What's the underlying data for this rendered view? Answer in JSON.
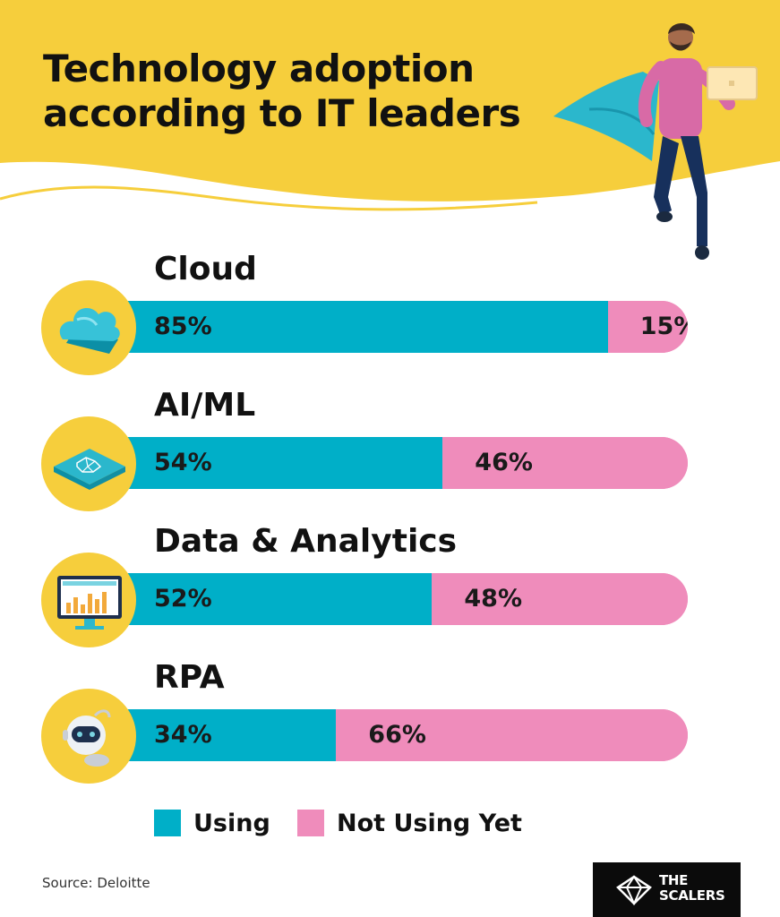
{
  "title_lines": [
    "Technology adoption",
    "according to IT leaders"
  ],
  "colors": {
    "background": "#ffffff",
    "header": "#f6ce3c",
    "using": "#00afc8",
    "not_using": "#ef8cbb",
    "icon_circle": "#f6ce3c",
    "text": "#111111"
  },
  "chart_data": {
    "type": "bar",
    "orientation": "horizontal",
    "stacked": true,
    "title": "Technology adoption according to IT leaders",
    "categories": [
      "Cloud",
      "AI/ML",
      "Data & Analytics",
      "RPA"
    ],
    "series": [
      {
        "name": "Using",
        "values": [
          85,
          54,
          52,
          34
        ],
        "labels": [
          "85%",
          "54%",
          "52%",
          "34%"
        ],
        "color": "#00afc8"
      },
      {
        "name": "Not Using Yet",
        "values": [
          15,
          46,
          48,
          66
        ],
        "labels": [
          "15%",
          "46%",
          "48%",
          "66%"
        ],
        "color": "#ef8cbb"
      }
    ],
    "value_unit": "%",
    "xlim": [
      0,
      100
    ],
    "legend_position": "bottom",
    "icons": [
      "cloud-icon",
      "ai-chip-icon",
      "analytics-monitor-icon",
      "robot-icon"
    ]
  },
  "legend": [
    {
      "label": "Using",
      "color": "#00afc8"
    },
    {
      "label": "Not Using Yet",
      "color": "#ef8cbb"
    }
  ],
  "source": "Source: Deloitte",
  "brand": {
    "line1": "THE",
    "line2": "SCALERS"
  }
}
